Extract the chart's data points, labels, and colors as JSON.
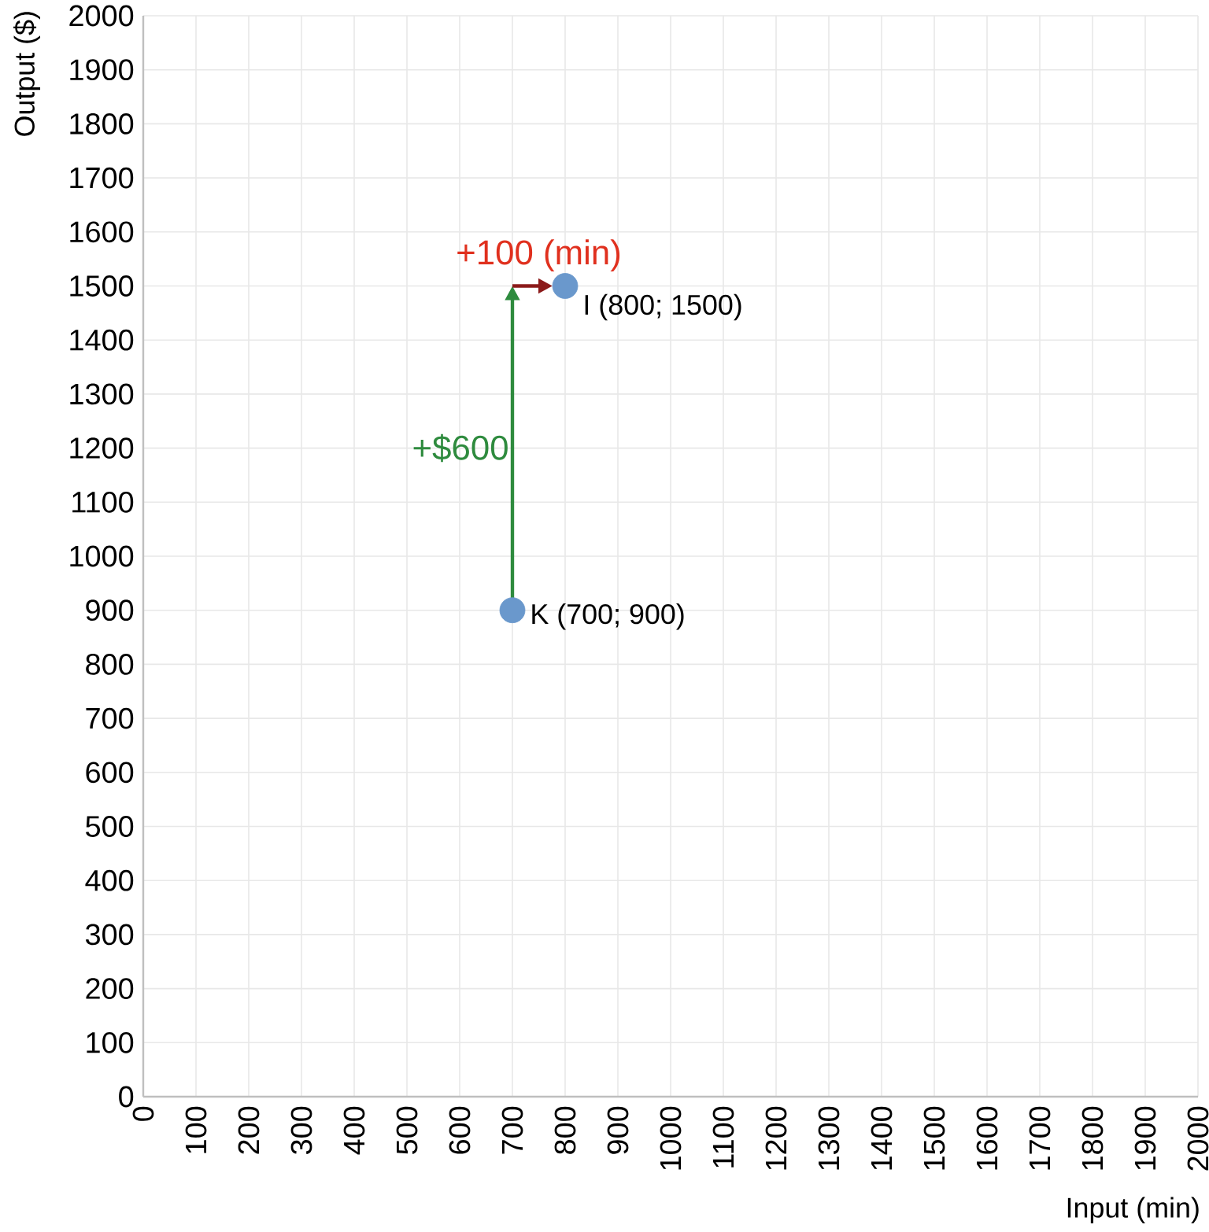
{
  "chart_data": {
    "type": "scatter",
    "xlabel": "Input (min)",
    "ylabel": "Output ($)",
    "x": [
      700,
      800
    ],
    "series": [
      {
        "color": "#6a98cc",
        "values": [
          900,
          1500
        ]
      }
    ],
    "xlim": [
      0,
      2000
    ],
    "ylim": [
      0,
      2000
    ],
    "xticks": [
      0,
      100,
      200,
      300,
      400,
      500,
      600,
      700,
      800,
      900,
      1000,
      1100,
      1200,
      1300,
      1400,
      1500,
      1600,
      1700,
      1800,
      1900,
      2000
    ],
    "yticks": [
      0,
      100,
      200,
      300,
      400,
      500,
      600,
      700,
      800,
      900,
      1000,
      1100,
      1200,
      1300,
      1400,
      1500,
      1600,
      1700,
      1800,
      1900,
      2000
    ],
    "grid": true,
    "marker": "circle",
    "annotations": [
      {
        "text": "K (700; 900)",
        "x": 700,
        "y": 900
      },
      {
        "text": "I (800; 1500)",
        "x": 800,
        "y": 1500
      },
      "+100 (min)",
      "+$600"
    ]
  }
}
